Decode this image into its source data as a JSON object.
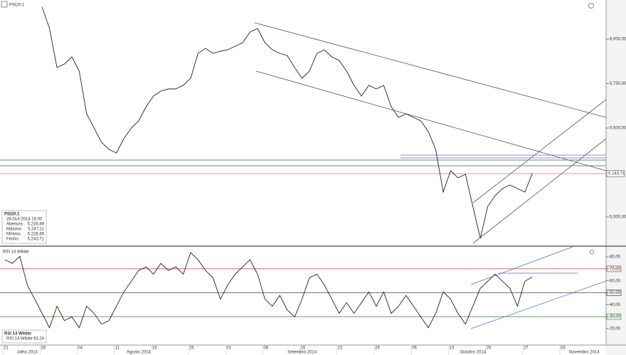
{
  "chart_data": [
    {
      "type": "line",
      "title": "PSI20.1",
      "series": [
        {
          "name": "PSI20.1",
          "color": "#222222",
          "values": [
            null,
            null,
            null,
            null,
            null,
            6180,
            6060,
            5840,
            5860,
            5900,
            5820,
            5580,
            5500,
            5420,
            5380,
            5360,
            5440,
            5500,
            5540,
            5620,
            5680,
            5708,
            5720,
            5720,
            5740,
            5780,
            5920,
            5948,
            5920,
            5932,
            5940,
            5960,
            5980,
            6040,
            6060,
            5980,
            5940,
            5920,
            5908,
            5840,
            5780,
            5820,
            5920,
            5940,
            5900,
            5880,
            5820,
            5740,
            5680,
            5740,
            5720,
            5740,
            5620,
            5560,
            5580,
            5560,
            5540,
            5480,
            5380,
            5140,
            5260,
            5220,
            5240,
            5060,
            4880,
            5060,
            5120,
            5160,
            5180,
            5160,
            5140,
            5243.71
          ]
        }
      ],
      "ylim": [
        4840,
        6220
      ],
      "yticks": [
        {
          "value": 5000,
          "label": "5.000,00"
        },
        {
          "value": 5500,
          "label": "5.500,00"
        },
        {
          "value": 5750,
          "label": "5.750,00"
        },
        {
          "value": 6000,
          "label": "6.000,00"
        }
      ],
      "current_value": {
        "value": 5243.71,
        "label": "5.243,71"
      },
      "levels": [
        5348,
        5332,
        5320,
        5288
      ],
      "info_box": {
        "title": "PSI20.1",
        "date": "28-Out-2014 16:00",
        "rows": [
          [
            "Abertura",
            "5.228,89"
          ],
          [
            "Máximo",
            "5.247,11"
          ],
          [
            "Mínimo",
            "5.228,89"
          ],
          [
            "Fecho",
            "5.243,71"
          ]
        ]
      }
    },
    {
      "type": "line",
      "title": "RSI 14 Wilder",
      "series": [
        {
          "name": "RSI 14 Wilder",
          "color": "#222222",
          "values": [
            77.6,
            74.6,
            80.6,
            56.6,
            44.7,
            32.7,
            20.7,
            38.7,
            26.7,
            29.7,
            20.7,
            38.7,
            32.7,
            23.7,
            26.7,
            38.7,
            50.7,
            59.6,
            68.6,
            71.6,
            65.6,
            74.6,
            68.6,
            71.6,
            65.6,
            83.6,
            77.6,
            68.6,
            62.6,
            44.7,
            56.6,
            65.6,
            71.6,
            77.6,
            65.6,
            44.7,
            38.7,
            47.7,
            35.7,
            29.7,
            44.7,
            62.6,
            65.6,
            56.6,
            44.7,
            32.7,
            41.7,
            32.7,
            41.7,
            50.7,
            38.7,
            50.7,
            32.7,
            38.7,
            47.7,
            38.7,
            29.7,
            20.7,
            32.7,
            50.7,
            44.7,
            32.7,
            23.7,
            38.7,
            53.7,
            59.6,
            65.6,
            59.6,
            53.7,
            38.7,
            59.6,
            63.24
          ]
        }
      ],
      "ylim": [
        6.2,
        88.4
      ],
      "yticks": [
        {
          "value": 20,
          "label": "20,00"
        },
        {
          "value": 30,
          "label": "30,00"
        },
        {
          "value": 40,
          "label": "40,00"
        },
        {
          "value": 50,
          "label": "50,00"
        },
        {
          "value": 60,
          "label": "60,00"
        },
        {
          "value": 70,
          "label": "70,00"
        },
        {
          "value": 80,
          "label": "80,00"
        }
      ],
      "levels": [
        {
          "value": 70,
          "color": "#c0392b"
        },
        {
          "value": 50,
          "color": "#34495e"
        },
        {
          "value": 30,
          "color": "#3a9a3a"
        }
      ],
      "info_box": {
        "title": "RSI 14 Wilder",
        "rows": [
          [
            "RSI 14 Wilder",
            "63,24"
          ]
        ]
      },
      "xticks": [
        {
          "value": 0,
          "label": "21"
        },
        {
          "value": 5,
          "label": "28"
        },
        {
          "value": 10,
          "label": "04"
        },
        {
          "value": 15,
          "label": "11"
        },
        {
          "value": 20,
          "label": "18"
        },
        {
          "value": 25,
          "label": "25"
        },
        {
          "value": 30,
          "label": "01"
        },
        {
          "value": 35,
          "label": "08"
        },
        {
          "value": 40,
          "label": "15"
        },
        {
          "value": 45,
          "label": "22"
        },
        {
          "value": 50,
          "label": "29"
        },
        {
          "value": 55,
          "label": "06"
        },
        {
          "value": 60,
          "label": "13"
        },
        {
          "value": 65,
          "label": "20"
        },
        {
          "value": 70,
          "label": "27"
        },
        {
          "value": 75,
          "label": "03"
        }
      ],
      "month_labels": [
        {
          "value": 3,
          "label": "Julho 2014"
        },
        {
          "value": 18,
          "label": "Agosto 2014"
        },
        {
          "value": 40,
          "label": "Setembro 2014"
        },
        {
          "value": 63,
          "label": "Outubro 2014"
        },
        {
          "value": 78,
          "label": "Novembro 2014"
        }
      ]
    }
  ]
}
